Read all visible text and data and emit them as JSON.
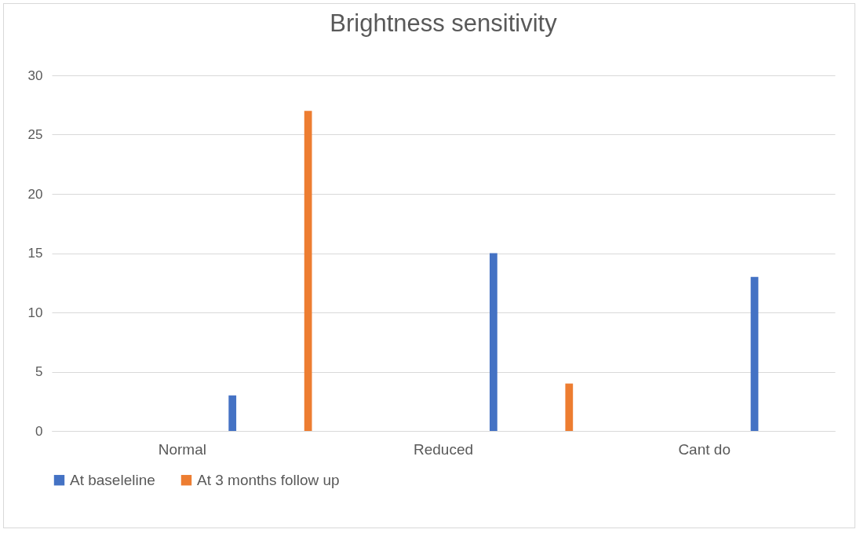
{
  "chart_data": {
    "type": "bar",
    "title": "Brightness sensitivity",
    "categories": [
      "Normal",
      "Reduced",
      "Cant do"
    ],
    "series": [
      {
        "name": "At baseleline",
        "color": "#4472c4",
        "values": [
          3,
          15,
          13
        ]
      },
      {
        "name": "At 3 months follow up",
        "color": "#ed7d31",
        "values": [
          27,
          4,
          0
        ]
      }
    ],
    "ylim": [
      0,
      30
    ],
    "yticks": [
      0,
      5,
      10,
      15,
      20,
      25,
      30
    ],
    "grid": "y",
    "legend": "bottom"
  }
}
